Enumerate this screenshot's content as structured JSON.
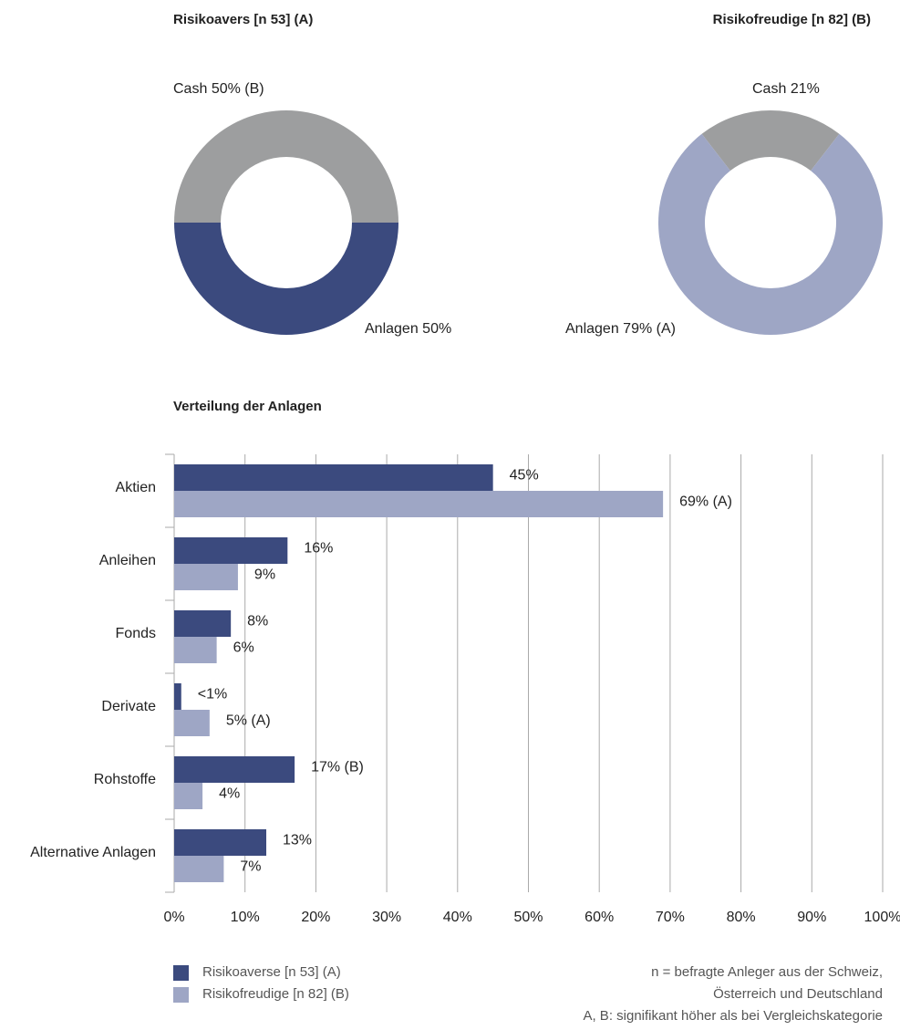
{
  "chart_data": [
    {
      "type": "pie",
      "title": "Risikoavers [n 53] (A)",
      "categories": [
        "Cash",
        "Anlagen"
      ],
      "values": [
        50,
        50
      ],
      "value_labels": [
        "50% (B)",
        "50%"
      ],
      "colors": [
        "#9d9e9f",
        "#3b4a7e"
      ]
    },
    {
      "type": "pie",
      "title": "Risikofreudige [n 82] (B)",
      "categories": [
        "Cash",
        "Anlagen"
      ],
      "values": [
        21,
        79
      ],
      "value_labels": [
        "21%",
        "79% (A)"
      ],
      "colors": [
        "#9d9e9f",
        "#9ea6c5"
      ]
    },
    {
      "type": "bar",
      "title": "Verteilung der Anlagen",
      "orientation": "horizontal",
      "categories": [
        "Aktien",
        "Anleihen",
        "Fonds",
        "Derivate",
        "Rohstoffe",
        "Alternative Anlagen"
      ],
      "series": [
        {
          "name": "Risikoaverse [n 53] (A)",
          "color": "#3b4a7e",
          "values": [
            45,
            16,
            8,
            1,
            17,
            13
          ],
          "value_labels": [
            "45%",
            "16%",
            "8%",
            "<1%",
            "17% (B)",
            "13%"
          ]
        },
        {
          "name": "Risikofreudige [n 82] (B)",
          "color": "#9ea6c5",
          "values": [
            69,
            9,
            6,
            5,
            4,
            7
          ],
          "value_labels": [
            "69% (A)",
            "9%",
            "6%",
            "5% (A)",
            "4%",
            "7%"
          ]
        }
      ],
      "xlim": [
        0,
        100
      ],
      "xticks": [
        {
          "value": 0,
          "label": "0%"
        },
        {
          "value": 10,
          "label": "10%"
        },
        {
          "value": 20,
          "label": "20%"
        },
        {
          "value": 30,
          "label": "30%"
        },
        {
          "value": 40,
          "label": "40%"
        },
        {
          "value": 50,
          "label": "50%"
        },
        {
          "value": 60,
          "label": "60%"
        },
        {
          "value": 70,
          "label": "70%"
        },
        {
          "value": 80,
          "label": "80%"
        },
        {
          "value": 90,
          "label": "90%"
        },
        {
          "value": 100,
          "label": "100%"
        }
      ],
      "grid": true
    }
  ],
  "notes": [
    "n = befragte Anleger aus der Schweiz,",
    "Österreich und Deutschland",
    "A, B: signifikant höher als bei Vergleichskategorie"
  ]
}
